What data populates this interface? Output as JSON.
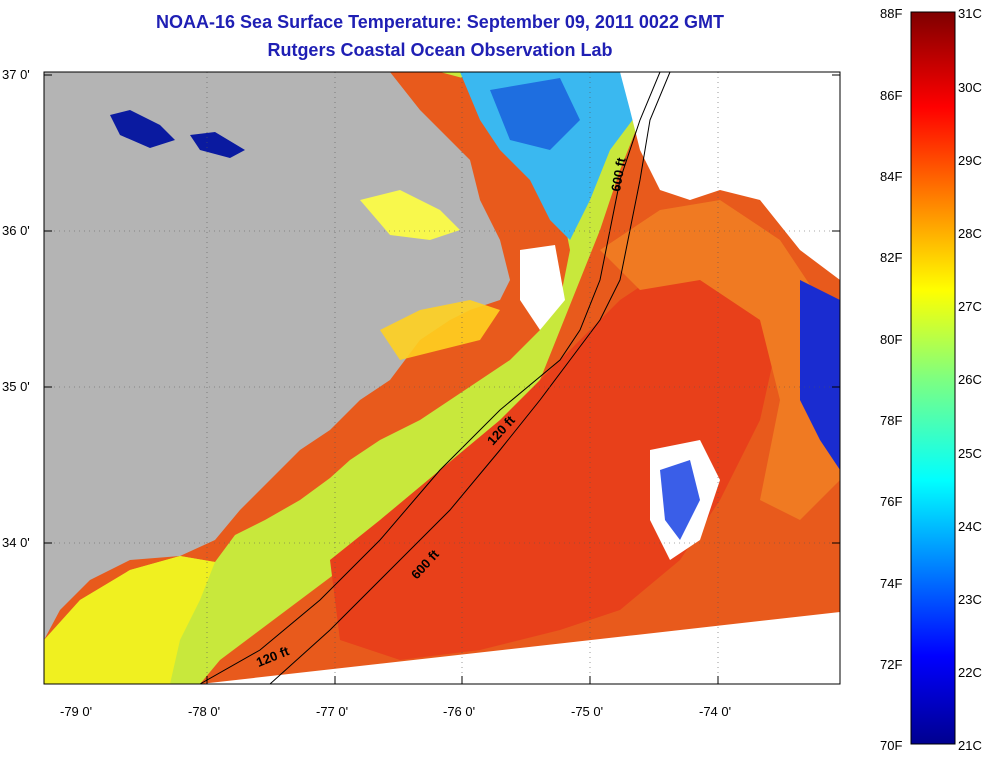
{
  "title_line1": "NOAA-16 Sea Surface Temperature:  September 09, 2011 0022 GMT",
  "title_line2": "Rutgers Coastal Ocean Observation Lab",
  "lat_labels": [
    "37 0'",
    "36 0'",
    "35 0'",
    "34 0'"
  ],
  "lon_labels": [
    "-79 0'",
    "-78 0'",
    "-77 0'",
    "-76 0'",
    "-75 0'",
    "-74 0'"
  ],
  "contour_labels": {
    "c120_north": "120 ft",
    "c120_south": "120 ft",
    "c600_north": "600 ft",
    "c600_south": "600 ft"
  },
  "colorbar": {
    "f_labels": [
      "88F",
      "86F",
      "84F",
      "82F",
      "80F",
      "78F",
      "76F",
      "74F",
      "72F",
      "70F"
    ],
    "c_labels": [
      "31C",
      "30C",
      "29C",
      "28C",
      "27C",
      "26C",
      "25C",
      "24C",
      "23C",
      "22C",
      "21C"
    ]
  },
  "colors": {
    "land": "#b4b4b4",
    "cloud": "#ffffff",
    "title": "#1f1fb4"
  }
}
